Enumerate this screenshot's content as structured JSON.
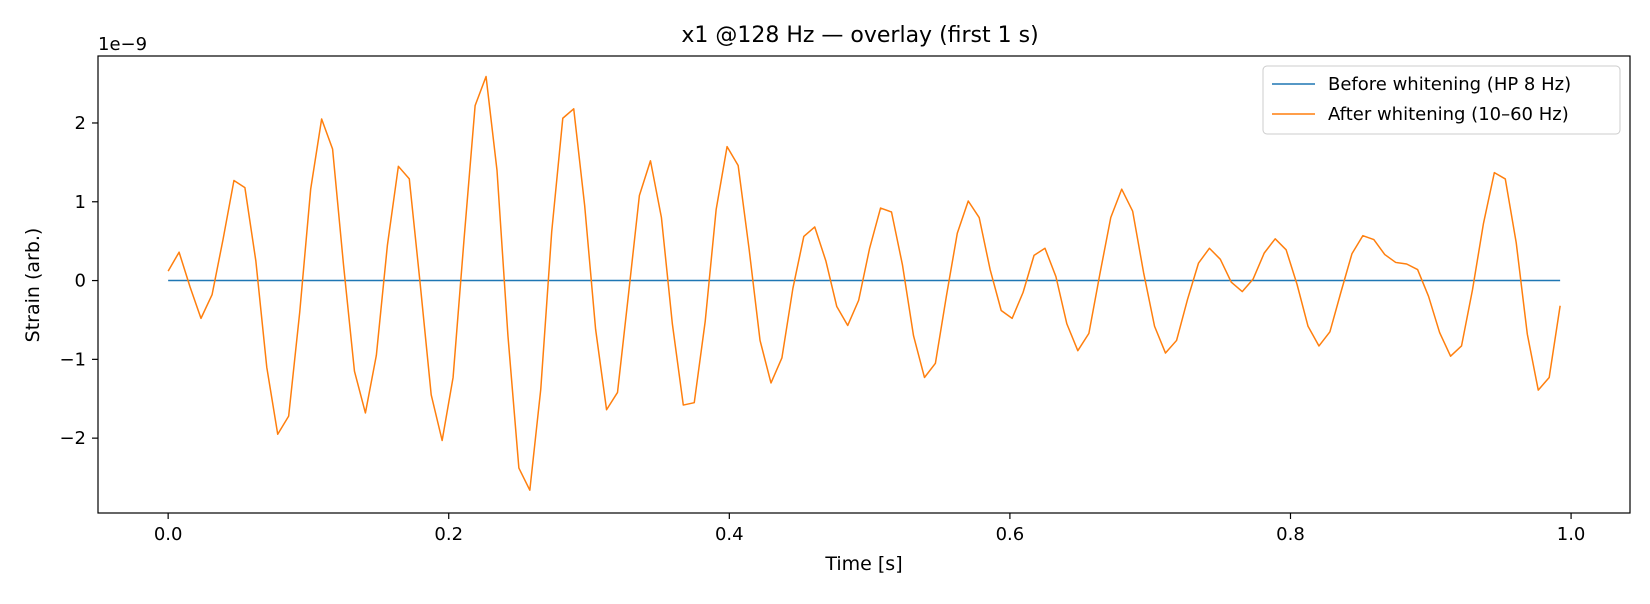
{
  "chart_data": {
    "type": "line",
    "title": "x1 @128 Hz — overlay (first 1 s)",
    "xlabel": "Time [s]",
    "ylabel": "Strain (arb.)",
    "y_offset_label": "1e−9",
    "xlim": [
      -0.05,
      1.042
    ],
    "ylim": [
      -2.95,
      2.85
    ],
    "y_scale_exponent": -9,
    "x_ticks": [
      0.0,
      0.2,
      0.4,
      0.6,
      0.8,
      1.0
    ],
    "x_tick_labels": [
      "0.0",
      "0.2",
      "0.4",
      "0.6",
      "0.8",
      "1.0"
    ],
    "y_ticks": [
      -2,
      -1,
      0,
      1,
      2
    ],
    "y_tick_labels": [
      "−2",
      "−1",
      "0",
      "1",
      "2"
    ],
    "grid": false,
    "legend_position": "upper right",
    "series": [
      {
        "name": "Before whitening (HP 8 Hz)",
        "color": "#1f77b4",
        "x": [
          0.0,
          0.9922
        ],
        "y": [
          0.0,
          0.0
        ]
      },
      {
        "name": "After whitening (10–60 Hz)",
        "color": "#ff7f0e",
        "x": [
          0.0,
          0.0078,
          0.0156,
          0.0234,
          0.0313,
          0.0391,
          0.0469,
          0.0547,
          0.0625,
          0.0703,
          0.0781,
          0.0859,
          0.0938,
          0.1016,
          0.1094,
          0.1172,
          0.125,
          0.1328,
          0.1406,
          0.1484,
          0.1563,
          0.1641,
          0.1719,
          0.1797,
          0.1875,
          0.1953,
          0.2031,
          0.2109,
          0.2188,
          0.2266,
          0.2344,
          0.2422,
          0.25,
          0.2578,
          0.2656,
          0.2734,
          0.2813,
          0.2891,
          0.2969,
          0.3047,
          0.3125,
          0.3203,
          0.3281,
          0.3359,
          0.3438,
          0.3516,
          0.3594,
          0.3672,
          0.375,
          0.3828,
          0.3906,
          0.3984,
          0.4063,
          0.4141,
          0.4219,
          0.4297,
          0.4375,
          0.4453,
          0.4531,
          0.4609,
          0.4688,
          0.4766,
          0.4844,
          0.4922,
          0.5,
          0.5078,
          0.5156,
          0.5234,
          0.5313,
          0.5391,
          0.5469,
          0.5547,
          0.5625,
          0.5703,
          0.5781,
          0.5859,
          0.5938,
          0.6016,
          0.6094,
          0.6172,
          0.625,
          0.6328,
          0.6406,
          0.6484,
          0.6563,
          0.6641,
          0.6719,
          0.6797,
          0.6875,
          0.6953,
          0.7031,
          0.7109,
          0.7188,
          0.7266,
          0.7344,
          0.7422,
          0.75,
          0.7578,
          0.7656,
          0.7734,
          0.7813,
          0.7891,
          0.7969,
          0.8047,
          0.8125,
          0.8203,
          0.8281,
          0.8359,
          0.8438,
          0.8516,
          0.8594,
          0.8672,
          0.875,
          0.8828,
          0.8906,
          0.8984,
          0.9063,
          0.9141,
          0.9219,
          0.9297,
          0.9375,
          0.9453,
          0.9531,
          0.9609,
          0.9688,
          0.9766,
          0.9844,
          0.9922
        ],
        "y": [
          0.12,
          0.36,
          -0.08,
          -0.48,
          -0.18,
          0.52,
          1.27,
          1.18,
          0.25,
          -1.1,
          -1.95,
          -1.72,
          -0.4,
          1.16,
          2.05,
          1.67,
          0.2,
          -1.15,
          -1.68,
          -0.95,
          0.45,
          1.45,
          1.29,
          -0.05,
          -1.45,
          -2.03,
          -1.23,
          0.52,
          2.22,
          2.59,
          1.4,
          -0.7,
          -2.38,
          -2.66,
          -1.38,
          0.62,
          2.06,
          2.18,
          0.95,
          -0.62,
          -1.64,
          -1.42,
          -0.18,
          1.08,
          1.52,
          0.8,
          -0.55,
          -1.58,
          -1.55,
          -0.52,
          0.9,
          1.7,
          1.46,
          0.4,
          -0.76,
          -1.3,
          -0.98,
          -0.1,
          0.56,
          0.68,
          0.25,
          -0.33,
          -0.57,
          -0.25,
          0.41,
          0.92,
          0.87,
          0.2,
          -0.7,
          -1.23,
          -1.05,
          -0.2,
          0.6,
          1.01,
          0.8,
          0.14,
          -0.38,
          -0.48,
          -0.15,
          0.32,
          0.41,
          0.05,
          -0.55,
          -0.89,
          -0.67,
          0.08,
          0.8,
          1.16,
          0.88,
          0.1,
          -0.58,
          -0.92,
          -0.76,
          -0.24,
          0.22,
          0.41,
          0.27,
          -0.02,
          -0.14,
          0.02,
          0.35,
          0.53,
          0.39,
          -0.05,
          -0.58,
          -0.83,
          -0.65,
          -0.15,
          0.34,
          0.57,
          0.52,
          0.33,
          0.23,
          0.21,
          0.14,
          -0.2,
          -0.66,
          -0.96,
          -0.83,
          -0.12,
          0.72,
          1.37,
          1.29,
          0.48,
          -0.68,
          -1.39,
          -1.23,
          -0.32
        ]
      }
    ]
  }
}
